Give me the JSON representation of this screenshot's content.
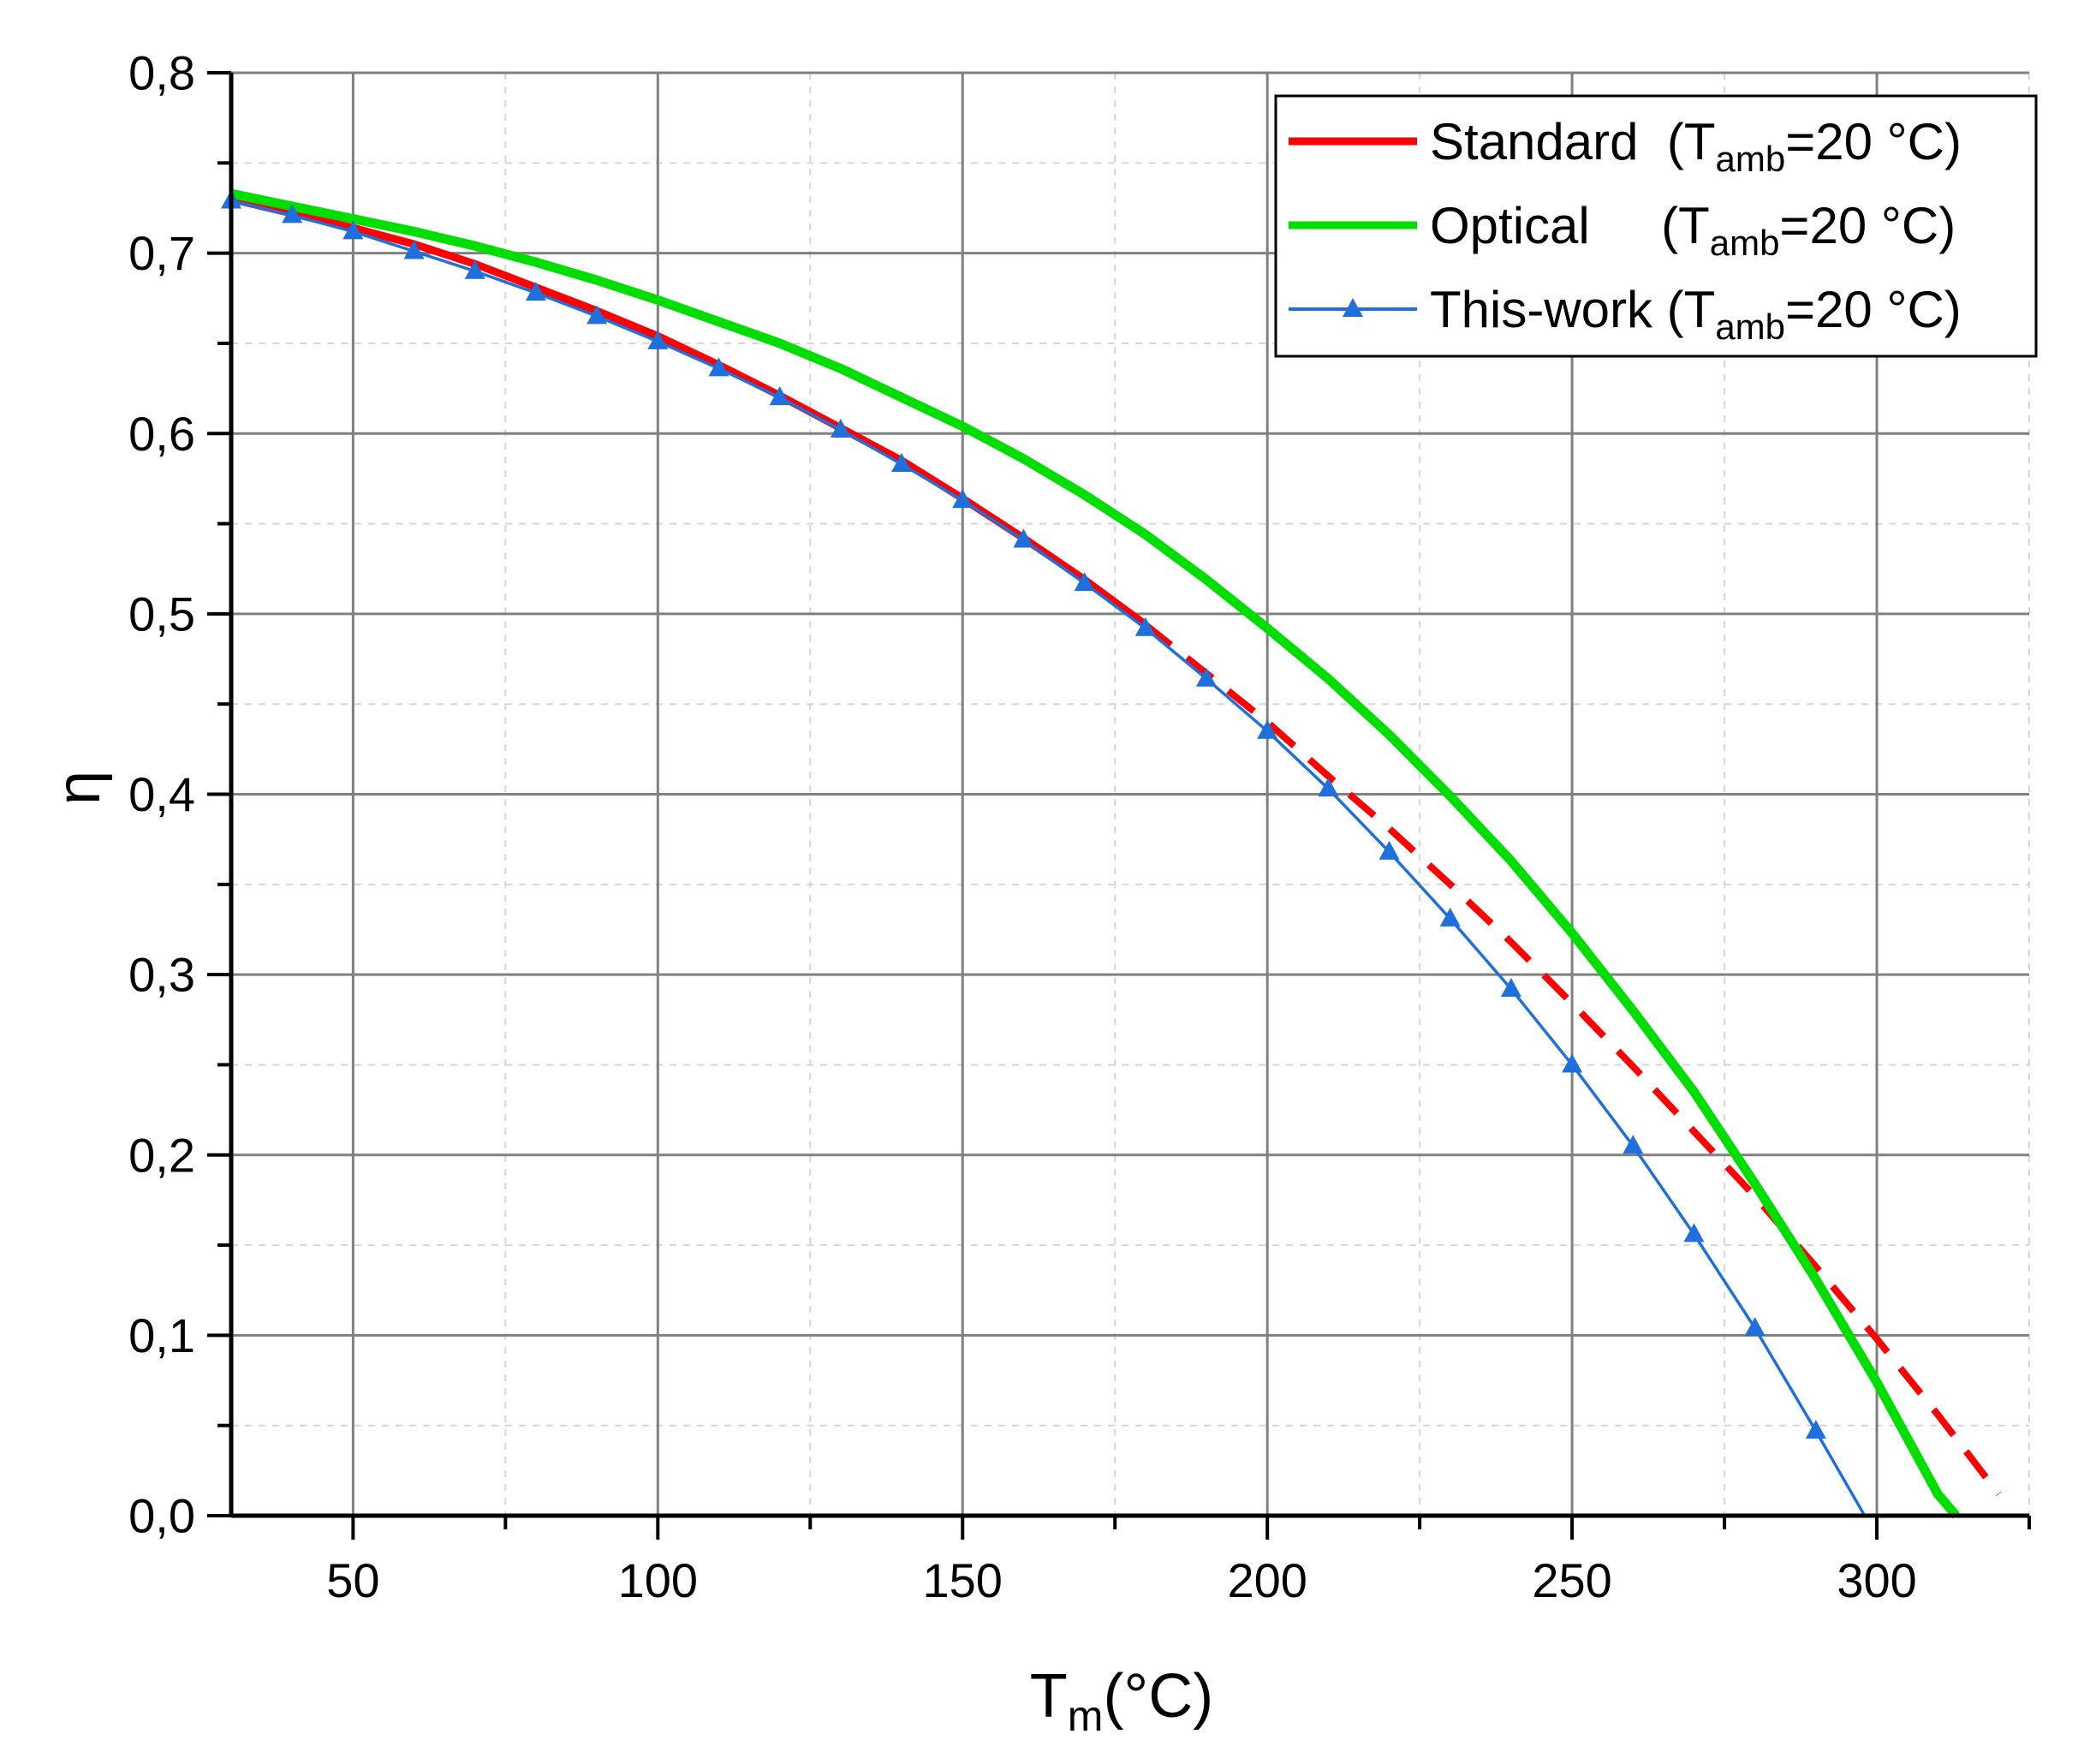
{
  "chart_data": {
    "type": "line",
    "title": "",
    "xlabel": {
      "base": "T",
      "sub": "m",
      "rest": "(°C)"
    },
    "ylabel": "η",
    "xlim": [
      30,
      325
    ],
    "ylim": [
      0.0,
      0.8
    ],
    "x_major_ticks": [
      50,
      100,
      150,
      200,
      250,
      300
    ],
    "x_tick_labels": [
      "50",
      "100",
      "150",
      "200",
      "250",
      "300"
    ],
    "x_minor_ticks": [
      75,
      125,
      175,
      225,
      275,
      325
    ],
    "y_major_ticks": [
      0.0,
      0.1,
      0.2,
      0.3,
      0.4,
      0.5,
      0.6,
      0.7,
      0.8
    ],
    "y_tick_labels": [
      "0,0",
      "0,1",
      "0,2",
      "0,3",
      "0,4",
      "0,5",
      "0,6",
      "0,7",
      "0,8"
    ],
    "y_minor_ticks": [
      0.05,
      0.15,
      0.25,
      0.35,
      0.45,
      0.55,
      0.65,
      0.75
    ],
    "grid": true,
    "legend_position": "top-right",
    "legend": [
      {
        "base": "Standard  (T",
        "sub": "amb",
        "rest": "=20 °C)",
        "color": "#ff0000",
        "style": "solid-thick"
      },
      {
        "base": "Optical     (T",
        "sub": "amb",
        "rest": "=20 °C)",
        "color": "#00dd00",
        "style": "solid-thick"
      },
      {
        "base": "This-work (T",
        "sub": "amb",
        "rest": "=20 °C)",
        "color": "#1f6fdc",
        "style": "line-triangle"
      }
    ],
    "series": [
      {
        "name": "Standard  (Tamb=20 °C)",
        "color": "#ff0000",
        "solid": {
          "x": [
            30,
            40,
            50,
            60,
            70,
            80,
            90,
            100,
            110,
            120,
            130,
            140,
            150,
            160,
            170,
            180
          ],
          "y": [
            0.73,
            0.722,
            0.714,
            0.705,
            0.694,
            0.681,
            0.668,
            0.654,
            0.638,
            0.621,
            0.603,
            0.585,
            0.564,
            0.542,
            0.519,
            0.494
          ]
        },
        "dashed": {
          "x": [
            180,
            190,
            200,
            210,
            220,
            230,
            240,
            250,
            260,
            270,
            280,
            290,
            300,
            310,
            320
          ],
          "y": [
            0.494,
            0.467,
            0.44,
            0.41,
            0.381,
            0.35,
            0.318,
            0.284,
            0.249,
            0.213,
            0.177,
            0.138,
            0.098,
            0.056,
            0.012
          ]
        }
      },
      {
        "name": "Optical     (Tamb=20 °C)",
        "color": "#00dd00",
        "x": [
          30,
          40,
          50,
          60,
          70,
          80,
          90,
          100,
          110,
          120,
          130,
          140,
          150,
          160,
          170,
          180,
          190,
          200,
          210,
          220,
          230,
          240,
          250,
          260,
          270,
          280,
          290,
          300,
          310,
          313
        ],
        "y": [
          0.733,
          0.726,
          0.719,
          0.712,
          0.704,
          0.695,
          0.685,
          0.674,
          0.662,
          0.65,
          0.636,
          0.62,
          0.604,
          0.586,
          0.566,
          0.544,
          0.519,
          0.492,
          0.464,
          0.433,
          0.399,
          0.363,
          0.323,
          0.28,
          0.235,
          0.184,
          0.131,
          0.074,
          0.012,
          0.0
        ]
      },
      {
        "name": "This-work (Tamb=20 °C)",
        "color": "#1f6fdc",
        "x": [
          30,
          40,
          50,
          60,
          70,
          80,
          90,
          100,
          110,
          120,
          130,
          140,
          150,
          160,
          170,
          180,
          190,
          200,
          210,
          220,
          230,
          240,
          250,
          260,
          270,
          280,
          290,
          298
        ],
        "y": [
          0.729,
          0.721,
          0.712,
          0.701,
          0.69,
          0.678,
          0.665,
          0.651,
          0.636,
          0.62,
          0.602,
          0.583,
          0.563,
          0.541,
          0.517,
          0.492,
          0.464,
          0.435,
          0.403,
          0.368,
          0.331,
          0.292,
          0.25,
          0.205,
          0.156,
          0.104,
          0.047,
          0.0
        ],
        "markers": "triangle",
        "marker_count": 27
      }
    ]
  }
}
